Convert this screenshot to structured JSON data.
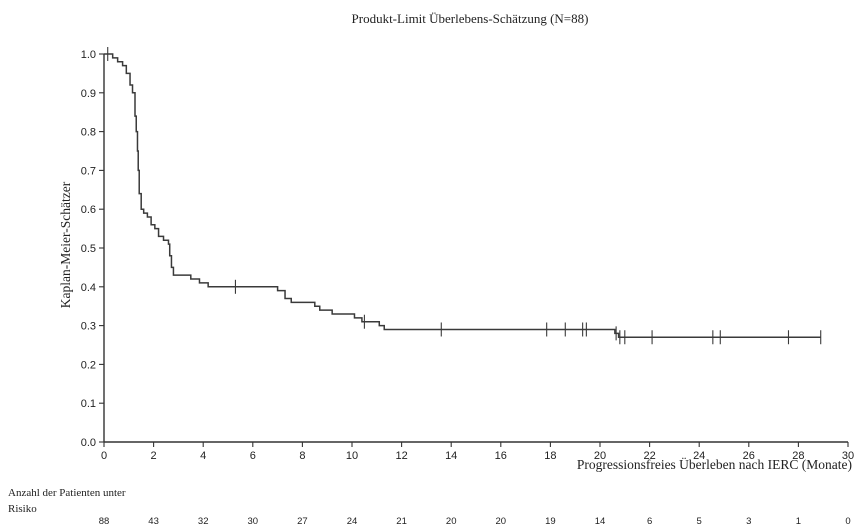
{
  "chart_data": {
    "type": "line",
    "title": "Produkt-Limit Überlebens-Schätzung (N=88)",
    "xlabel": "Progressionsfreies Überleben nach IERC (Monate)",
    "ylabel": "Kaplan-Meier-Schätzer",
    "xlim": [
      0,
      30
    ],
    "ylim": [
      0,
      1.0
    ],
    "xticks": [
      0,
      2,
      4,
      6,
      8,
      10,
      12,
      14,
      16,
      18,
      20,
      22,
      24,
      26,
      28,
      30
    ],
    "xtick_labels": [
      "0",
      "2",
      "4",
      "6",
      "8",
      "10",
      "12",
      "14",
      "16",
      "18",
      "20",
      "22",
      "24",
      "26",
      "28",
      "30"
    ],
    "yticks": [
      0.0,
      0.1,
      0.2,
      0.3,
      0.4,
      0.5,
      0.6,
      0.7,
      0.8,
      0.9,
      1.0
    ],
    "ytick_labels": [
      "0.0",
      "0.1",
      "0.2",
      "0.3",
      "0.4",
      "0.5",
      "0.6",
      "0.7",
      "0.8",
      "0.9",
      "1.0"
    ],
    "grid": false,
    "series": [
      {
        "steps": [
          [
            0,
            1.0
          ],
          [
            0.35,
            0.99
          ],
          [
            0.55,
            0.98
          ],
          [
            0.75,
            0.97
          ],
          [
            0.9,
            0.95
          ],
          [
            1.05,
            0.92
          ],
          [
            1.15,
            0.9
          ],
          [
            1.25,
            0.84
          ],
          [
            1.3,
            0.8
          ],
          [
            1.35,
            0.75
          ],
          [
            1.38,
            0.7
          ],
          [
            1.42,
            0.64
          ],
          [
            1.5,
            0.6
          ],
          [
            1.6,
            0.59
          ],
          [
            1.75,
            0.58
          ],
          [
            1.9,
            0.56
          ],
          [
            2.05,
            0.55
          ],
          [
            2.2,
            0.53
          ],
          [
            2.4,
            0.52
          ],
          [
            2.6,
            0.51
          ],
          [
            2.65,
            0.48
          ],
          [
            2.72,
            0.45
          ],
          [
            2.8,
            0.43
          ],
          [
            3.5,
            0.42
          ],
          [
            3.85,
            0.41
          ],
          [
            4.2,
            0.4
          ],
          [
            7.0,
            0.39
          ],
          [
            7.3,
            0.37
          ],
          [
            7.55,
            0.36
          ],
          [
            8.5,
            0.35
          ],
          [
            8.7,
            0.34
          ],
          [
            9.2,
            0.33
          ],
          [
            10.1,
            0.32
          ],
          [
            10.4,
            0.31
          ],
          [
            11.1,
            0.3
          ],
          [
            11.3,
            0.29
          ],
          [
            20.6,
            0.28
          ],
          [
            20.75,
            0.27
          ]
        ],
        "end_x": 28.9,
        "censored_x": [
          0.15,
          5.3,
          10.5,
          13.6,
          17.85,
          18.6,
          19.3,
          19.45,
          20.65,
          20.8,
          21.0,
          22.1,
          24.55,
          24.85,
          27.6,
          28.9
        ]
      }
    ],
    "risk_table": {
      "title": "Anzahl der Patienten unter Risiko",
      "counts": [
        "88",
        "43",
        "32",
        "30",
        "27",
        "24",
        "21",
        "20",
        "20",
        "19",
        "14",
        "6",
        "5",
        "3",
        "1",
        "0"
      ]
    }
  }
}
